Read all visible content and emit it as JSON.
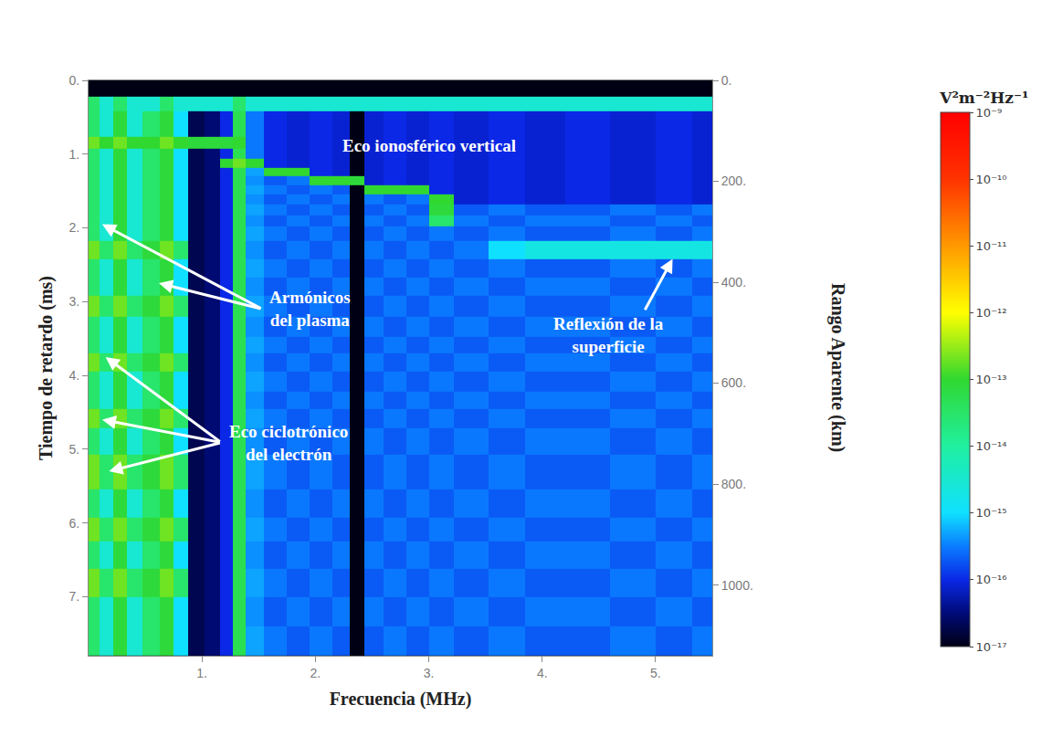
{
  "chart_data": {
    "type": "heatmap",
    "x_label": "Frecuencia (MHz)",
    "y_label": "Tiempo de retardo (ms)",
    "y2_label": "Rango Aparente (km)",
    "colorbar_title": "V²m⁻²Hz⁻¹",
    "grid": false,
    "xlim": [
      0,
      5.5
    ],
    "ylim": [
      7.8,
      0
    ],
    "y2lim": [
      1140,
      0
    ],
    "xticks": [
      {
        "value": 1,
        "label": "1."
      },
      {
        "value": 2,
        "label": "2."
      },
      {
        "value": 3,
        "label": "3."
      },
      {
        "value": 4,
        "label": "4."
      },
      {
        "value": 5,
        "label": "5."
      }
    ],
    "yticks": [
      {
        "value": 0,
        "label": "0."
      },
      {
        "value": 1,
        "label": "1."
      },
      {
        "value": 2,
        "label": "2."
      },
      {
        "value": 3,
        "label": "3."
      },
      {
        "value": 4,
        "label": "4."
      },
      {
        "value": 5,
        "label": "5."
      },
      {
        "value": 6,
        "label": "6."
      },
      {
        "value": 7,
        "label": "7."
      }
    ],
    "y2ticks": [
      {
        "value": 0,
        "label": "0."
      },
      {
        "value": 200,
        "label": "200."
      },
      {
        "value": 400,
        "label": "400."
      },
      {
        "value": 600,
        "label": "600."
      },
      {
        "value": 800,
        "label": "800."
      },
      {
        "value": 1000,
        "label": "1000."
      }
    ],
    "zlim": [
      1e-17,
      1e-09
    ],
    "zticks": [
      {
        "value": 1e-09,
        "label": "10⁻⁹"
      },
      {
        "value": 1e-10,
        "label": "10⁻¹⁰"
      },
      {
        "value": 1e-11,
        "label": "10⁻¹¹"
      },
      {
        "value": 1e-12,
        "label": "10⁻¹²"
      },
      {
        "value": 1e-13,
        "label": "10⁻¹³"
      },
      {
        "value": 1e-14,
        "label": "10⁻¹⁴"
      },
      {
        "value": 1e-15,
        "label": "10⁻¹⁵"
      },
      {
        "value": 1e-16,
        "label": "10⁻¹⁶"
      },
      {
        "value": 1e-17,
        "label": "10⁻¹⁷"
      }
    ],
    "x": [
      0.05,
      0.15,
      0.28,
      0.4,
      0.55,
      0.7,
      0.8,
      0.95,
      1.1,
      1.22,
      1.32,
      1.45,
      1.65,
      1.85,
      2.05,
      2.25,
      2.36,
      2.5,
      2.7,
      2.9,
      3.1,
      3.35,
      3.7,
      4.0,
      4.4,
      4.8,
      5.2,
      5.45
    ],
    "y": [
      0.1,
      0.33,
      0.5,
      0.68,
      0.85,
      1.0,
      1.12,
      1.24,
      1.36,
      1.48,
      1.6,
      1.75,
      1.9,
      2.05,
      2.3,
      2.55,
      2.8,
      3.05,
      3.35,
      3.6,
      3.8,
      4.1,
      4.35,
      4.57,
      4.85,
      5.3,
      5.8,
      6.05,
      6.45,
      6.8,
      7.2,
      7.6
    ],
    "z": [
      [
        1e-17,
        1e-17,
        1e-17,
        1e-17,
        1e-17,
        1e-17,
        1e-17,
        1e-17,
        1e-17,
        1e-17,
        1e-17,
        1e-17,
        1e-17,
        1e-17,
        1e-17,
        1e-17,
        1e-17,
        1e-17,
        1e-17,
        1e-17,
        1e-17,
        1e-17,
        1e-17,
        1e-17,
        1e-17,
        1e-17,
        1e-17,
        1e-17
      ],
      [
        3e-14,
        3e-15,
        3e-14,
        3e-15,
        3e-15,
        3e-14,
        3e-15,
        3e-15,
        3e-15,
        3e-15,
        3e-14,
        3e-15,
        3e-15,
        3e-15,
        3e-15,
        3e-15,
        3e-15,
        3e-15,
        3e-15,
        3e-15,
        3e-15,
        3e-15,
        3e-15,
        3e-15,
        3e-15,
        3e-15,
        3e-15,
        3e-15
      ],
      [
        3e-14,
        3e-15,
        8e-14,
        3e-15,
        3e-14,
        8e-14,
        1e-15,
        2e-17,
        3e-17,
        1e-16,
        5e-14,
        3e-16,
        1e-16,
        8e-17,
        1e-16,
        8e-17,
        1e-17,
        8e-17,
        1e-16,
        8e-17,
        1e-16,
        8e-17,
        1e-16,
        8e-17,
        1e-16,
        8e-17,
        1e-16,
        8e-17
      ],
      [
        3e-14,
        3e-15,
        8e-14,
        3e-15,
        3e-14,
        8e-14,
        1e-15,
        2e-17,
        3e-17,
        1e-16,
        5e-14,
        3e-16,
        1e-16,
        8e-17,
        1e-16,
        8e-17,
        1e-17,
        8e-17,
        1e-16,
        8e-17,
        1e-16,
        8e-17,
        1e-16,
        8e-17,
        1e-16,
        8e-17,
        1e-16,
        8e-17
      ],
      [
        2e-13,
        1e-13,
        2e-13,
        1e-13,
        1e-13,
        2e-13,
        1e-13,
        8e-14,
        8e-14,
        8e-14,
        1e-13,
        3e-16,
        1e-16,
        8e-17,
        1e-16,
        8e-17,
        1e-17,
        8e-17,
        1e-16,
        8e-17,
        1e-16,
        8e-17,
        1e-16,
        8e-17,
        1e-16,
        8e-17,
        1e-16,
        8e-17
      ],
      [
        3e-14,
        3e-15,
        8e-14,
        3e-15,
        3e-14,
        8e-14,
        1e-15,
        2e-17,
        3e-17,
        1e-16,
        5e-14,
        3e-16,
        1e-16,
        8e-17,
        1e-16,
        8e-17,
        1e-17,
        8e-17,
        1e-16,
        8e-17,
        1e-16,
        8e-17,
        1e-16,
        8e-17,
        1e-16,
        8e-17,
        1e-16,
        8e-17
      ],
      [
        3e-14,
        3e-15,
        8e-14,
        3e-15,
        3e-14,
        8e-14,
        1e-15,
        2e-17,
        3e-17,
        1e-13,
        2e-13,
        1e-13,
        1e-16,
        8e-17,
        1e-16,
        8e-17,
        1e-17,
        8e-17,
        1e-16,
        8e-17,
        1e-16,
        8e-17,
        1e-16,
        8e-17,
        1e-16,
        8e-17,
        1e-16,
        8e-17
      ],
      [
        3e-14,
        3e-15,
        8e-14,
        3e-15,
        3e-14,
        8e-14,
        1e-15,
        2e-17,
        3e-17,
        1e-16,
        5e-14,
        5e-16,
        1e-13,
        1e-13,
        1e-16,
        8e-17,
        1e-17,
        8e-17,
        1e-16,
        8e-17,
        1e-16,
        8e-17,
        1e-16,
        8e-17,
        1e-16,
        8e-17,
        1e-16,
        8e-17
      ],
      [
        3e-14,
        3e-15,
        8e-14,
        3e-15,
        3e-14,
        8e-14,
        1e-15,
        2e-17,
        3e-17,
        1e-16,
        5e-14,
        4e-16,
        2e-16,
        3e-16,
        1e-13,
        1e-13,
        8e-14,
        8e-17,
        1e-16,
        8e-17,
        1e-16,
        8e-17,
        1e-16,
        8e-17,
        1e-16,
        8e-17,
        1e-16,
        8e-17
      ],
      [
        3e-14,
        3e-15,
        8e-14,
        3e-15,
        3e-14,
        8e-14,
        1e-15,
        2e-17,
        3e-17,
        1e-16,
        5e-14,
        5e-16,
        3e-16,
        2e-16,
        3e-16,
        2e-16,
        1e-17,
        1e-13,
        1e-13,
        1e-13,
        1e-16,
        8e-17,
        1e-16,
        8e-17,
        1e-16,
        8e-17,
        1e-16,
        8e-17
      ],
      [
        3e-14,
        3e-15,
        8e-14,
        3e-15,
        3e-14,
        8e-14,
        1e-15,
        2e-17,
        3e-17,
        1e-16,
        5e-14,
        4e-16,
        2e-16,
        3e-16,
        2e-16,
        3e-16,
        1e-17,
        3e-16,
        2e-16,
        3e-16,
        1e-13,
        8e-17,
        1e-16,
        8e-17,
        1e-16,
        8e-17,
        1e-16,
        8e-17
      ],
      [
        3e-14,
        3e-15,
        8e-14,
        3e-15,
        3e-14,
        8e-14,
        1e-15,
        2e-17,
        3e-17,
        1e-16,
        5e-14,
        5e-16,
        3e-16,
        2e-16,
        3e-16,
        2e-16,
        1e-17,
        2e-16,
        3e-16,
        2e-16,
        8e-14,
        2e-16,
        3e-16,
        2e-16,
        2e-16,
        3e-16,
        2e-16,
        3e-16
      ],
      [
        3e-14,
        3e-15,
        8e-14,
        3e-15,
        3e-14,
        8e-14,
        1e-15,
        2e-17,
        3e-17,
        1e-16,
        5e-14,
        4e-16,
        2e-16,
        3e-16,
        2e-16,
        3e-16,
        1e-17,
        3e-16,
        2e-16,
        3e-16,
        3e-14,
        3e-16,
        2e-16,
        3e-16,
        3e-16,
        2e-16,
        3e-16,
        2e-16
      ],
      [
        3e-14,
        3e-15,
        8e-14,
        3e-15,
        3e-14,
        8e-14,
        1e-15,
        2e-17,
        3e-17,
        1e-16,
        5e-14,
        5e-16,
        3e-16,
        2e-16,
        3e-16,
        2e-16,
        1e-17,
        2e-16,
        3e-16,
        2e-16,
        3e-16,
        2e-16,
        3e-16,
        2e-16,
        2e-16,
        3e-16,
        2e-16,
        3e-16
      ],
      [
        2e-13,
        3e-14,
        2e-13,
        3e-14,
        8e-14,
        2e-13,
        3e-14,
        2e-17,
        3e-17,
        1e-16,
        5e-14,
        4e-16,
        2e-16,
        3e-16,
        2e-16,
        3e-16,
        1e-17,
        3e-16,
        2e-16,
        3e-16,
        2e-16,
        3e-16,
        1e-15,
        2e-15,
        2e-15,
        2e-15,
        2e-15,
        2e-15
      ],
      [
        3e-14,
        3e-15,
        8e-14,
        3e-15,
        3e-14,
        8e-14,
        1e-15,
        2e-17,
        3e-17,
        1e-16,
        5e-14,
        5e-16,
        3e-16,
        2e-16,
        3e-16,
        2e-16,
        1e-17,
        2e-16,
        3e-16,
        2e-16,
        3e-16,
        2e-16,
        3e-16,
        2e-16,
        2e-16,
        3e-16,
        2e-16,
        3e-16
      ],
      [
        3e-14,
        3e-15,
        8e-14,
        3e-15,
        3e-14,
        8e-14,
        1e-15,
        2e-17,
        3e-17,
        1e-16,
        5e-14,
        4e-16,
        2e-16,
        3e-16,
        2e-16,
        3e-16,
        1e-17,
        3e-16,
        2e-16,
        3e-16,
        2e-16,
        3e-16,
        2e-16,
        3e-16,
        3e-16,
        2e-16,
        3e-16,
        2e-16
      ],
      [
        2e-13,
        3e-14,
        2e-13,
        3e-14,
        8e-14,
        2e-13,
        3e-14,
        2e-17,
        3e-17,
        1e-16,
        5e-14,
        5e-16,
        3e-16,
        2e-16,
        3e-16,
        2e-16,
        1e-17,
        2e-16,
        3e-16,
        2e-16,
        3e-16,
        2e-16,
        3e-16,
        2e-16,
        2e-16,
        3e-16,
        2e-16,
        3e-16
      ],
      [
        3e-14,
        3e-15,
        8e-14,
        3e-15,
        3e-14,
        8e-14,
        1e-15,
        2e-17,
        3e-17,
        1e-16,
        5e-14,
        4e-16,
        2e-16,
        3e-16,
        2e-16,
        3e-16,
        1e-17,
        3e-16,
        2e-16,
        3e-16,
        2e-16,
        3e-16,
        2e-16,
        3e-16,
        3e-16,
        2e-16,
        3e-16,
        2e-16
      ],
      [
        3e-14,
        3e-15,
        8e-14,
        3e-15,
        3e-14,
        8e-14,
        1e-15,
        2e-17,
        3e-17,
        1e-16,
        5e-14,
        5e-16,
        3e-16,
        2e-16,
        3e-16,
        2e-16,
        1e-17,
        2e-16,
        3e-16,
        2e-16,
        3e-16,
        2e-16,
        3e-16,
        2e-16,
        2e-16,
        3e-16,
        2e-16,
        3e-16
      ],
      [
        2e-13,
        3e-14,
        2e-13,
        3e-14,
        8e-14,
        2e-13,
        3e-14,
        2e-17,
        3e-17,
        1e-16,
        5e-14,
        4e-16,
        2e-16,
        3e-16,
        2e-16,
        3e-16,
        1e-17,
        3e-16,
        2e-16,
        3e-16,
        2e-16,
        3e-16,
        2e-16,
        3e-16,
        3e-16,
        2e-16,
        3e-16,
        2e-16
      ],
      [
        3e-14,
        3e-15,
        8e-14,
        3e-15,
        3e-14,
        8e-14,
        1e-15,
        2e-17,
        3e-17,
        1e-16,
        5e-14,
        5e-16,
        3e-16,
        2e-16,
        3e-16,
        2e-16,
        1e-17,
        2e-16,
        3e-16,
        2e-16,
        3e-16,
        2e-16,
        3e-16,
        2e-16,
        2e-16,
        3e-16,
        2e-16,
        3e-16
      ],
      [
        3e-14,
        3e-15,
        8e-14,
        3e-15,
        3e-14,
        8e-14,
        1e-15,
        2e-17,
        3e-17,
        1e-16,
        5e-14,
        4e-16,
        2e-16,
        3e-16,
        2e-16,
        3e-16,
        1e-17,
        3e-16,
        2e-16,
        3e-16,
        2e-16,
        3e-16,
        2e-16,
        3e-16,
        3e-16,
        2e-16,
        3e-16,
        2e-16
      ],
      [
        2e-13,
        3e-14,
        2e-13,
        3e-14,
        8e-14,
        2e-13,
        3e-14,
        2e-17,
        3e-17,
        1e-16,
        5e-14,
        5e-16,
        3e-16,
        2e-16,
        3e-16,
        2e-16,
        1e-17,
        2e-16,
        3e-16,
        2e-16,
        3e-16,
        2e-16,
        3e-16,
        2e-16,
        2e-16,
        3e-16,
        2e-16,
        3e-16
      ],
      [
        3e-14,
        3e-15,
        8e-14,
        3e-15,
        3e-14,
        8e-14,
        1e-15,
        2e-17,
        3e-17,
        1e-16,
        5e-14,
        4e-16,
        2e-16,
        3e-16,
        2e-16,
        3e-16,
        1e-17,
        3e-16,
        2e-16,
        3e-16,
        2e-16,
        3e-16,
        2e-16,
        3e-16,
        3e-16,
        2e-16,
        3e-16,
        2e-16
      ],
      [
        2e-13,
        3e-14,
        2e-13,
        3e-14,
        8e-14,
        2e-13,
        3e-14,
        2e-17,
        3e-17,
        1e-16,
        5e-14,
        5e-16,
        3e-16,
        2e-16,
        3e-16,
        2e-16,
        1e-17,
        2e-16,
        3e-16,
        2e-16,
        3e-16,
        2e-16,
        3e-16,
        2e-16,
        2e-16,
        3e-16,
        2e-16,
        3e-16
      ],
      [
        3e-14,
        3e-15,
        8e-14,
        3e-15,
        3e-14,
        8e-14,
        1e-15,
        2e-17,
        3e-17,
        1e-16,
        5e-14,
        4e-16,
        2e-16,
        3e-16,
        2e-16,
        3e-16,
        1e-17,
        3e-16,
        2e-16,
        3e-16,
        2e-16,
        3e-16,
        2e-16,
        3e-16,
        3e-16,
        2e-16,
        3e-16,
        2e-16
      ],
      [
        2e-13,
        3e-14,
        2e-13,
        3e-14,
        8e-14,
        2e-13,
        3e-14,
        2e-17,
        3e-17,
        1e-16,
        5e-14,
        5e-16,
        3e-16,
        2e-16,
        3e-16,
        2e-16,
        1e-17,
        2e-16,
        3e-16,
        2e-16,
        3e-16,
        2e-16,
        3e-16,
        2e-16,
        2e-16,
        3e-16,
        2e-16,
        3e-16
      ],
      [
        3e-14,
        3e-15,
        8e-14,
        3e-15,
        3e-14,
        8e-14,
        1e-15,
        2e-17,
        3e-17,
        1e-16,
        5e-14,
        4e-16,
        2e-16,
        3e-16,
        2e-16,
        3e-16,
        1e-17,
        3e-16,
        2e-16,
        3e-16,
        2e-16,
        3e-16,
        2e-16,
        3e-16,
        3e-16,
        2e-16,
        3e-16,
        2e-16
      ],
      [
        2e-13,
        3e-14,
        2e-13,
        3e-14,
        8e-14,
        2e-13,
        3e-14,
        2e-17,
        3e-17,
        1e-16,
        5e-14,
        5e-16,
        3e-16,
        2e-16,
        3e-16,
        2e-16,
        1e-17,
        2e-16,
        3e-16,
        2e-16,
        3e-16,
        2e-16,
        3e-16,
        2e-16,
        2e-16,
        3e-16,
        2e-16,
        3e-16
      ],
      [
        3e-14,
        3e-15,
        8e-14,
        3e-15,
        3e-14,
        8e-14,
        1e-15,
        2e-17,
        3e-17,
        1e-16,
        5e-14,
        4e-16,
        2e-16,
        3e-16,
        2e-16,
        3e-16,
        1e-17,
        3e-16,
        2e-16,
        3e-16,
        2e-16,
        3e-16,
        2e-16,
        3e-16,
        3e-16,
        2e-16,
        3e-16,
        2e-16
      ],
      [
        3e-14,
        3e-15,
        8e-14,
        3e-15,
        3e-14,
        8e-14,
        1e-15,
        2e-17,
        3e-17,
        1e-16,
        5e-14,
        5e-16,
        3e-16,
        2e-16,
        3e-16,
        2e-16,
        1e-17,
        2e-16,
        3e-16,
        2e-16,
        3e-16,
        2e-16,
        3e-16,
        2e-16,
        2e-16,
        3e-16,
        2e-16,
        3e-16
      ]
    ],
    "annotations": [
      {
        "text": "Eco ionosférico vertical",
        "x": 3.0,
        "y": 0.89
      },
      {
        "text": "Armónicos\ndel plasma",
        "x": 1.58,
        "y": 3.1,
        "arrows": [
          [
            0.12,
            1.95
          ],
          [
            0.62,
            2.75
          ]
        ]
      },
      {
        "text": "Eco ciclotrónico\ndel electrón",
        "x": 1.22,
        "y": 4.91,
        "arrows": [
          [
            0.15,
            3.75
          ],
          [
            0.12,
            4.6
          ],
          [
            0.18,
            5.3
          ]
        ]
      },
      {
        "text": "Reflexión de la\nsuperficie",
        "x": 4.08,
        "y": 3.46,
        "arrows": [
          [
            5.15,
            2.42
          ]
        ]
      }
    ]
  }
}
